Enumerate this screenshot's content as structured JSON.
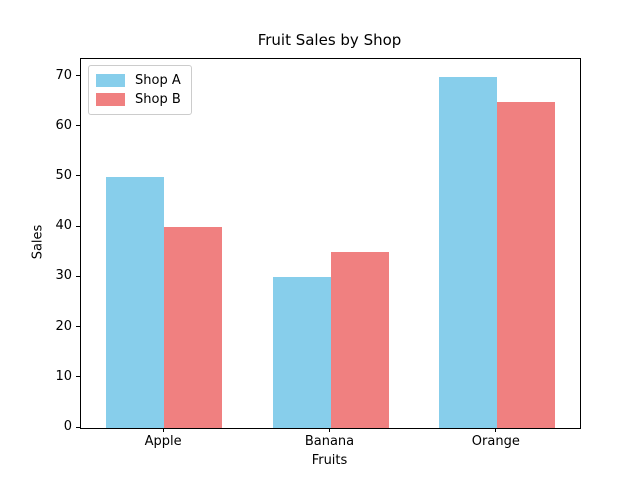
{
  "title": "Fruit Sales by Shop",
  "chart_data": {
    "type": "bar",
    "title": "Fruit Sales by Shop",
    "xlabel": "Fruits",
    "ylabel": "Sales",
    "categories": [
      "Apple",
      "Banana",
      "Orange"
    ],
    "series": [
      {
        "name": "Shop A",
        "color": "#87CEEB",
        "values": [
          50,
          30,
          70
        ]
      },
      {
        "name": "Shop B",
        "color": "#F08080",
        "values": [
          40,
          35,
          65
        ]
      }
    ],
    "yticks": [
      0,
      10,
      20,
      30,
      40,
      50,
      60,
      70
    ],
    "ylim": [
      0,
      73.5
    ],
    "grid": false,
    "legend_position": "upper left",
    "bar_group_layout": "side-by-side"
  }
}
